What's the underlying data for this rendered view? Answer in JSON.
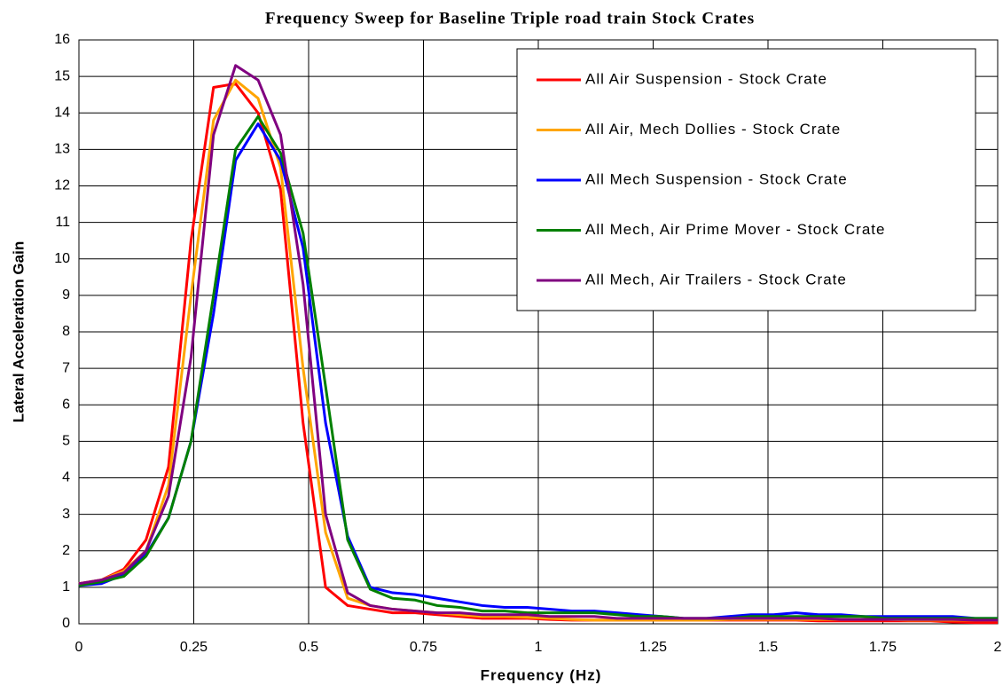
{
  "chart_data": {
    "type": "line",
    "title": "Frequency Sweep for Baseline Triple road train Stock Crates",
    "x_label": "Frequency (Hz)",
    "y_label": "Lateral Acceleration Gain",
    "x": [
      0,
      0.049,
      0.098,
      0.146,
      0.195,
      0.244,
      0.293,
      0.341,
      0.39,
      0.439,
      0.488,
      0.537,
      0.585,
      0.634,
      0.683,
      0.732,
      0.78,
      0.829,
      0.878,
      0.927,
      0.976,
      1.024,
      1.073,
      1.122,
      1.171,
      1.22,
      1.268,
      1.317,
      1.366,
      1.415,
      1.463,
      1.512,
      1.561,
      1.61,
      1.659,
      1.707,
      1.756,
      1.805,
      1.854,
      1.902,
      1.951,
      2.0
    ],
    "series": [
      {
        "name": "All Air Suspension - Stock Crate",
        "color": "#ff0000",
        "values": [
          1.1,
          1.2,
          1.5,
          2.3,
          4.3,
          10.5,
          14.7,
          14.8,
          14.0,
          11.9,
          5.5,
          1.0,
          0.5,
          0.4,
          0.3,
          0.3,
          0.25,
          0.2,
          0.15,
          0.15,
          0.15,
          0.12,
          0.1,
          0.1,
          0.1,
          0.1,
          0.1,
          0.1,
          0.1,
          0.1,
          0.1,
          0.1,
          0.1,
          0.08,
          0.08,
          0.08,
          0.08,
          0.08,
          0.08,
          0.05,
          0.03,
          0.03
        ]
      },
      {
        "name": "All Air, Mech Dollies - Stock Crate",
        "color": "#ffa500",
        "values": [
          1.1,
          1.2,
          1.45,
          2.0,
          3.8,
          9.0,
          13.8,
          14.9,
          14.4,
          12.5,
          7.0,
          2.5,
          0.7,
          0.5,
          0.4,
          0.35,
          0.3,
          0.25,
          0.2,
          0.2,
          0.18,
          0.15,
          0.12,
          0.1,
          0.1,
          0.1,
          0.1,
          0.1,
          0.1,
          0.12,
          0.12,
          0.12,
          0.12,
          0.12,
          0.12,
          0.12,
          0.12,
          0.1,
          0.1,
          0.1,
          0.1,
          0.1
        ]
      },
      {
        "name": "All Mech Suspension - Stock Crate",
        "color": "#0000ff",
        "values": [
          1.05,
          1.1,
          1.35,
          1.9,
          2.9,
          5.0,
          8.5,
          12.7,
          13.7,
          12.7,
          10.3,
          5.5,
          2.4,
          1.0,
          0.85,
          0.8,
          0.7,
          0.6,
          0.5,
          0.45,
          0.45,
          0.4,
          0.35,
          0.35,
          0.3,
          0.25,
          0.2,
          0.15,
          0.15,
          0.2,
          0.25,
          0.25,
          0.3,
          0.25,
          0.25,
          0.2,
          0.2,
          0.2,
          0.2,
          0.2,
          0.15,
          0.15
        ]
      },
      {
        "name": "All Mech, Air Prime Mover - Stock Crate",
        "color": "#008000",
        "values": [
          1.05,
          1.15,
          1.3,
          1.85,
          2.9,
          5.0,
          9.0,
          13.0,
          13.9,
          12.9,
          10.7,
          6.5,
          2.3,
          0.95,
          0.7,
          0.65,
          0.5,
          0.45,
          0.35,
          0.35,
          0.3,
          0.3,
          0.3,
          0.3,
          0.25,
          0.2,
          0.2,
          0.15,
          0.15,
          0.15,
          0.2,
          0.2,
          0.2,
          0.2,
          0.2,
          0.2,
          0.15,
          0.15,
          0.15,
          0.15,
          0.15,
          0.15
        ]
      },
      {
        "name": "All Mech, Air Trailers - Stock Crate",
        "color": "#800080",
        "values": [
          1.1,
          1.2,
          1.4,
          2.0,
          3.5,
          7.3,
          13.4,
          15.3,
          14.9,
          13.4,
          9.3,
          3.0,
          0.85,
          0.5,
          0.4,
          0.35,
          0.3,
          0.3,
          0.25,
          0.25,
          0.25,
          0.2,
          0.2,
          0.2,
          0.15,
          0.15,
          0.15,
          0.15,
          0.15,
          0.15,
          0.15,
          0.15,
          0.15,
          0.15,
          0.12,
          0.12,
          0.12,
          0.12,
          0.12,
          0.12,
          0.1,
          0.1
        ]
      }
    ],
    "xlim": [
      0,
      2
    ],
    "xticks": [
      0,
      0.25,
      0.5,
      0.75,
      1,
      1.25,
      1.5,
      1.75,
      2
    ],
    "ylim": [
      0,
      16
    ],
    "yticks": [
      0,
      1,
      2,
      3,
      4,
      5,
      6,
      7,
      8,
      9,
      10,
      11,
      12,
      13,
      14,
      15,
      16
    ],
    "grid": true,
    "legend": "upper right"
  }
}
